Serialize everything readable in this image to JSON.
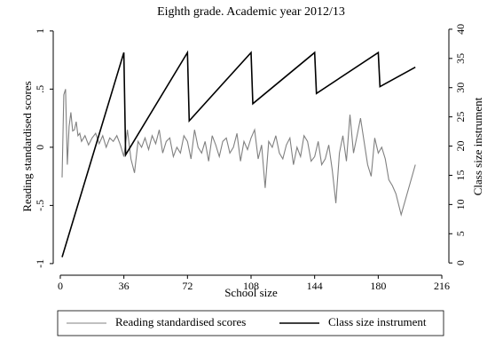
{
  "chart_data": {
    "type": "line",
    "title": "Eighth grade. Academic year 2012/13",
    "x_label": "School size",
    "y_label": "Reading standardised scores",
    "y2_label": "Class size instrument",
    "xlim": [
      -4,
      220
    ],
    "xticks": [
      0,
      36,
      72,
      108,
      144,
      180,
      216
    ],
    "ylim": [
      -1.1,
      1.06
    ],
    "yticks": [
      {
        "value": -1,
        "label": "-1"
      },
      {
        "value": -0.5,
        "label": "-.5"
      },
      0,
      {
        "value": 0.5,
        "label": ".5"
      },
      1
    ],
    "y2lim": [
      -2.1,
      40.9
    ],
    "y2ticks": [
      0,
      5,
      10,
      15,
      20,
      25,
      30,
      35,
      40
    ],
    "legend": "bottom",
    "series": [
      {
        "name": "Reading standardised scores",
        "color": "#808080",
        "x": [
          1,
          2,
          3,
          4,
          5,
          6,
          7,
          8,
          9,
          10,
          11,
          12,
          14,
          16,
          18,
          20,
          22,
          24,
          26,
          28,
          30,
          32,
          34,
          36,
          38,
          40,
          42,
          44,
          46,
          48,
          50,
          52,
          54,
          56,
          58,
          60,
          62,
          64,
          66,
          68,
          70,
          72,
          74,
          76,
          78,
          80,
          82,
          84,
          86,
          88,
          90,
          92,
          94,
          96,
          98,
          100,
          102,
          104,
          106,
          108,
          110,
          112,
          114,
          116,
          118,
          120,
          122,
          124,
          126,
          128,
          130,
          132,
          134,
          136,
          138,
          140,
          142,
          144,
          146,
          148,
          150,
          152,
          154,
          156,
          158,
          160,
          162,
          164,
          166,
          168,
          170,
          172,
          174,
          176,
          178,
          180,
          182,
          184,
          186,
          188,
          190,
          193,
          201
        ],
        "values": [
          -0.26,
          0.45,
          0.5,
          -0.15,
          0.18,
          0.3,
          0.14,
          0.15,
          0.22,
          0.1,
          0.12,
          0.05,
          0.1,
          0.02,
          0.08,
          0.12,
          0.03,
          0.1,
          0.0,
          0.08,
          0.05,
          0.1,
          0.02,
          -0.08,
          0.15,
          -0.1,
          -0.22,
          0.05,
          0.0,
          0.08,
          -0.02,
          0.1,
          0.03,
          0.15,
          -0.05,
          0.05,
          0.08,
          -0.08,
          0.0,
          -0.05,
          0.1,
          0.05,
          -0.1,
          0.15,
          0.0,
          -0.05,
          0.05,
          -0.12,
          0.1,
          0.02,
          -0.08,
          0.05,
          0.08,
          -0.05,
          0.0,
          0.12,
          -0.12,
          0.05,
          -0.02,
          0.08,
          0.15,
          -0.1,
          0.02,
          -0.35,
          0.05,
          0.0,
          0.1,
          -0.05,
          -0.1,
          0.02,
          0.08,
          -0.15,
          0.0,
          -0.08,
          0.1,
          0.05,
          -0.12,
          -0.08,
          0.05,
          -0.15,
          -0.1,
          0.02,
          -0.2,
          -0.48,
          -0.05,
          0.1,
          -0.12,
          0.28,
          -0.05,
          0.1,
          0.25,
          0.05,
          -0.15,
          -0.25,
          0.08,
          -0.05,
          0.0,
          -0.1,
          -0.28,
          -0.33,
          -0.4,
          -0.58,
          -0.15
        ]
      },
      {
        "name": "Class size instrument",
        "color": "#000000",
        "axis": "y2",
        "x": [
          1,
          36,
          37,
          72,
          73,
          108,
          109,
          144,
          145,
          180,
          181,
          201
        ],
        "values": [
          1,
          36,
          18.5,
          36,
          24.33,
          36,
          27.25,
          36,
          29,
          36,
          30.17,
          33.5
        ]
      }
    ]
  }
}
